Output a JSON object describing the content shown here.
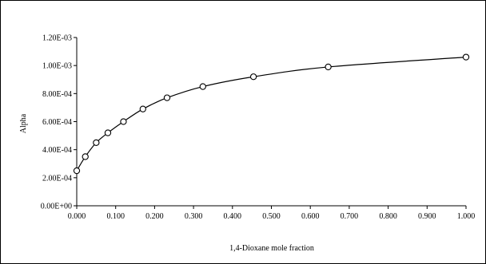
{
  "chart_data": {
    "type": "scatter",
    "title": "",
    "xlabel": "1,4-Dioxane mole fraction",
    "ylabel": "Alpha",
    "xlim": [
      0,
      1
    ],
    "ylim": [
      0,
      0.0012
    ],
    "x_ticks": [
      "0.000",
      "0.100",
      "0.200",
      "0.300",
      "0.400",
      "0.500",
      "0.600",
      "0.700",
      "0.800",
      "0.900",
      "1.000"
    ],
    "y_ticks": [
      "0.00E+00",
      "2.00E-04",
      "4.00E-04",
      "6.00E-04",
      "8.00E-04",
      "1.00E-03",
      "1.20E-03"
    ],
    "grid": false,
    "legend": "none",
    "series": [
      {
        "marker": "open-circle",
        "line": "smooth",
        "x": [
          0.0,
          0.022,
          0.05,
          0.08,
          0.12,
          0.17,
          0.232,
          0.324,
          0.454,
          0.646,
          1.0
        ],
        "y": [
          0.00025,
          0.00035,
          0.00045,
          0.00052,
          0.0006,
          0.00069,
          0.00077,
          0.00085,
          0.00092,
          0.00099,
          0.00106
        ]
      }
    ]
  }
}
